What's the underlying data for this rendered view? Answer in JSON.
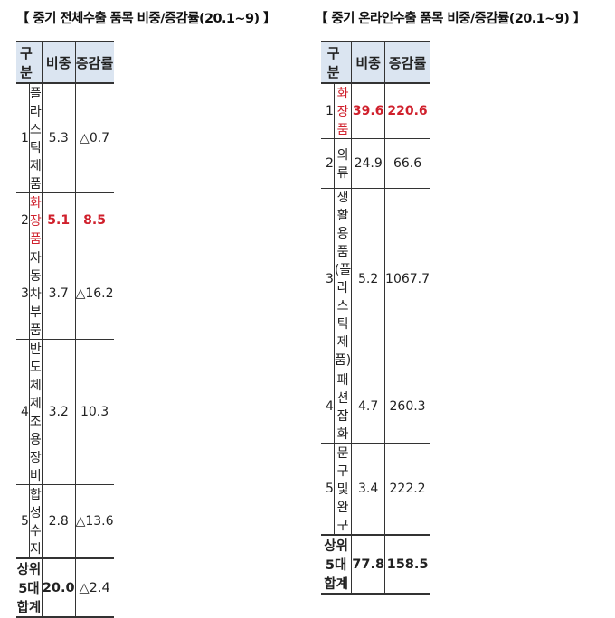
{
  "left": {
    "title": "【 중기 전체수출 품목 비중/증감률(20.1~9) 】",
    "headers": {
      "category": "구 분",
      "share": "비중",
      "growth": "증감률"
    },
    "rows": [
      {
        "rank": "1",
        "item": "플라스틱 제품",
        "share": "5.3",
        "growth": "△0.7"
      },
      {
        "rank": "2",
        "item": "화장품",
        "share": "5.1",
        "growth": "8.5"
      },
      {
        "rank": "3",
        "item": "자동차부품",
        "share": "3.7",
        "growth": "△16.2"
      },
      {
        "rank": "4",
        "item": "반도체제조용장비",
        "share": "3.2",
        "growth": "10.3"
      },
      {
        "rank": "5",
        "item": "합성수지",
        "share": "2.8",
        "growth": "△13.6"
      }
    ],
    "total": {
      "label": "상위 5대 합계",
      "share": "20.0",
      "growth": "△2.4"
    }
  },
  "right": {
    "title": "【 중기 온라인수출 품목 비중/증감률(20.1~9) 】",
    "headers": {
      "category": "구 분",
      "share": "비중",
      "growth": "증감률"
    },
    "rows": [
      {
        "rank": "1",
        "item": "화장품",
        "share": "39.6",
        "growth": "220.6"
      },
      {
        "rank": "2",
        "item": "의류",
        "share": "24.9",
        "growth": "66.6"
      },
      {
        "rank": "3",
        "item_line1": "생활용품",
        "item_line2": "(플라스틱제품)",
        "share": "5.2",
        "growth": "1067.7"
      },
      {
        "rank": "4",
        "item": "패션잡화",
        "share": "4.7",
        "growth": "260.3"
      },
      {
        "rank": "5",
        "item": "문구 및 완구",
        "share": "3.4",
        "growth": "222.2"
      }
    ],
    "total": {
      "label": "상위 5대 합계",
      "share": "77.8",
      "growth": "158.5"
    }
  },
  "colors": {
    "header_bg": "#dbe5f1",
    "highlight": "#d0202c",
    "border": "#333333"
  }
}
